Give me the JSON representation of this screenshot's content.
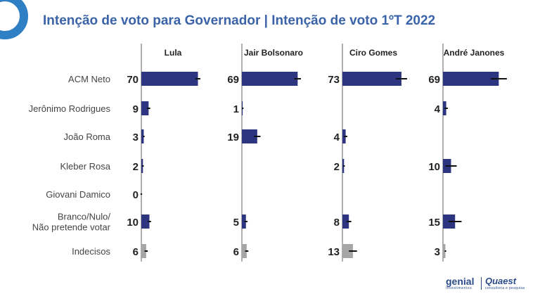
{
  "title": "Intenção de voto para Governador | Intenção de voto 1ºT 2022",
  "chart_data": {
    "type": "bar",
    "orientation": "horizontal",
    "panels": [
      "Lula",
      "Jair Bolsonaro",
      "Ciro Gomes",
      "André Janones"
    ],
    "categories": [
      "ACM Neto",
      "Jerônimo Rodrigues",
      "João Roma",
      "Kleber Rosa",
      "Giovani Damico",
      "Branco/Nulo/\nNão pretende votar",
      "Indecisos"
    ],
    "bar_colors": {
      "candidate": "#2d3580",
      "other": "#a6a6a6"
    },
    "error_bar_color": "#111111",
    "axis_line_color": "#b0b0b0",
    "xlim": [
      0,
      100
    ],
    "values": [
      [
        70,
        69,
        73,
        69
      ],
      [
        9,
        1,
        null,
        4
      ],
      [
        3,
        19,
        4,
        null
      ],
      [
        2,
        null,
        2,
        10
      ],
      [
        0,
        null,
        null,
        null
      ],
      [
        10,
        5,
        8,
        15
      ],
      [
        6,
        6,
        13,
        3
      ]
    ],
    "errors": [
      [
        3,
        4,
        7,
        10
      ],
      [
        2,
        1,
        null,
        2
      ],
      [
        1,
        4,
        2,
        null
      ],
      [
        1,
        null,
        1,
        7
      ],
      [
        1,
        null,
        null,
        null
      ],
      [
        2,
        2,
        3,
        8
      ],
      [
        2,
        2,
        5,
        1
      ]
    ]
  },
  "brands": {
    "genial": "genial",
    "genial_sub": "investimentos",
    "quaest": "Quaest",
    "quaest_sub": "consultoria e pesquisa"
  }
}
